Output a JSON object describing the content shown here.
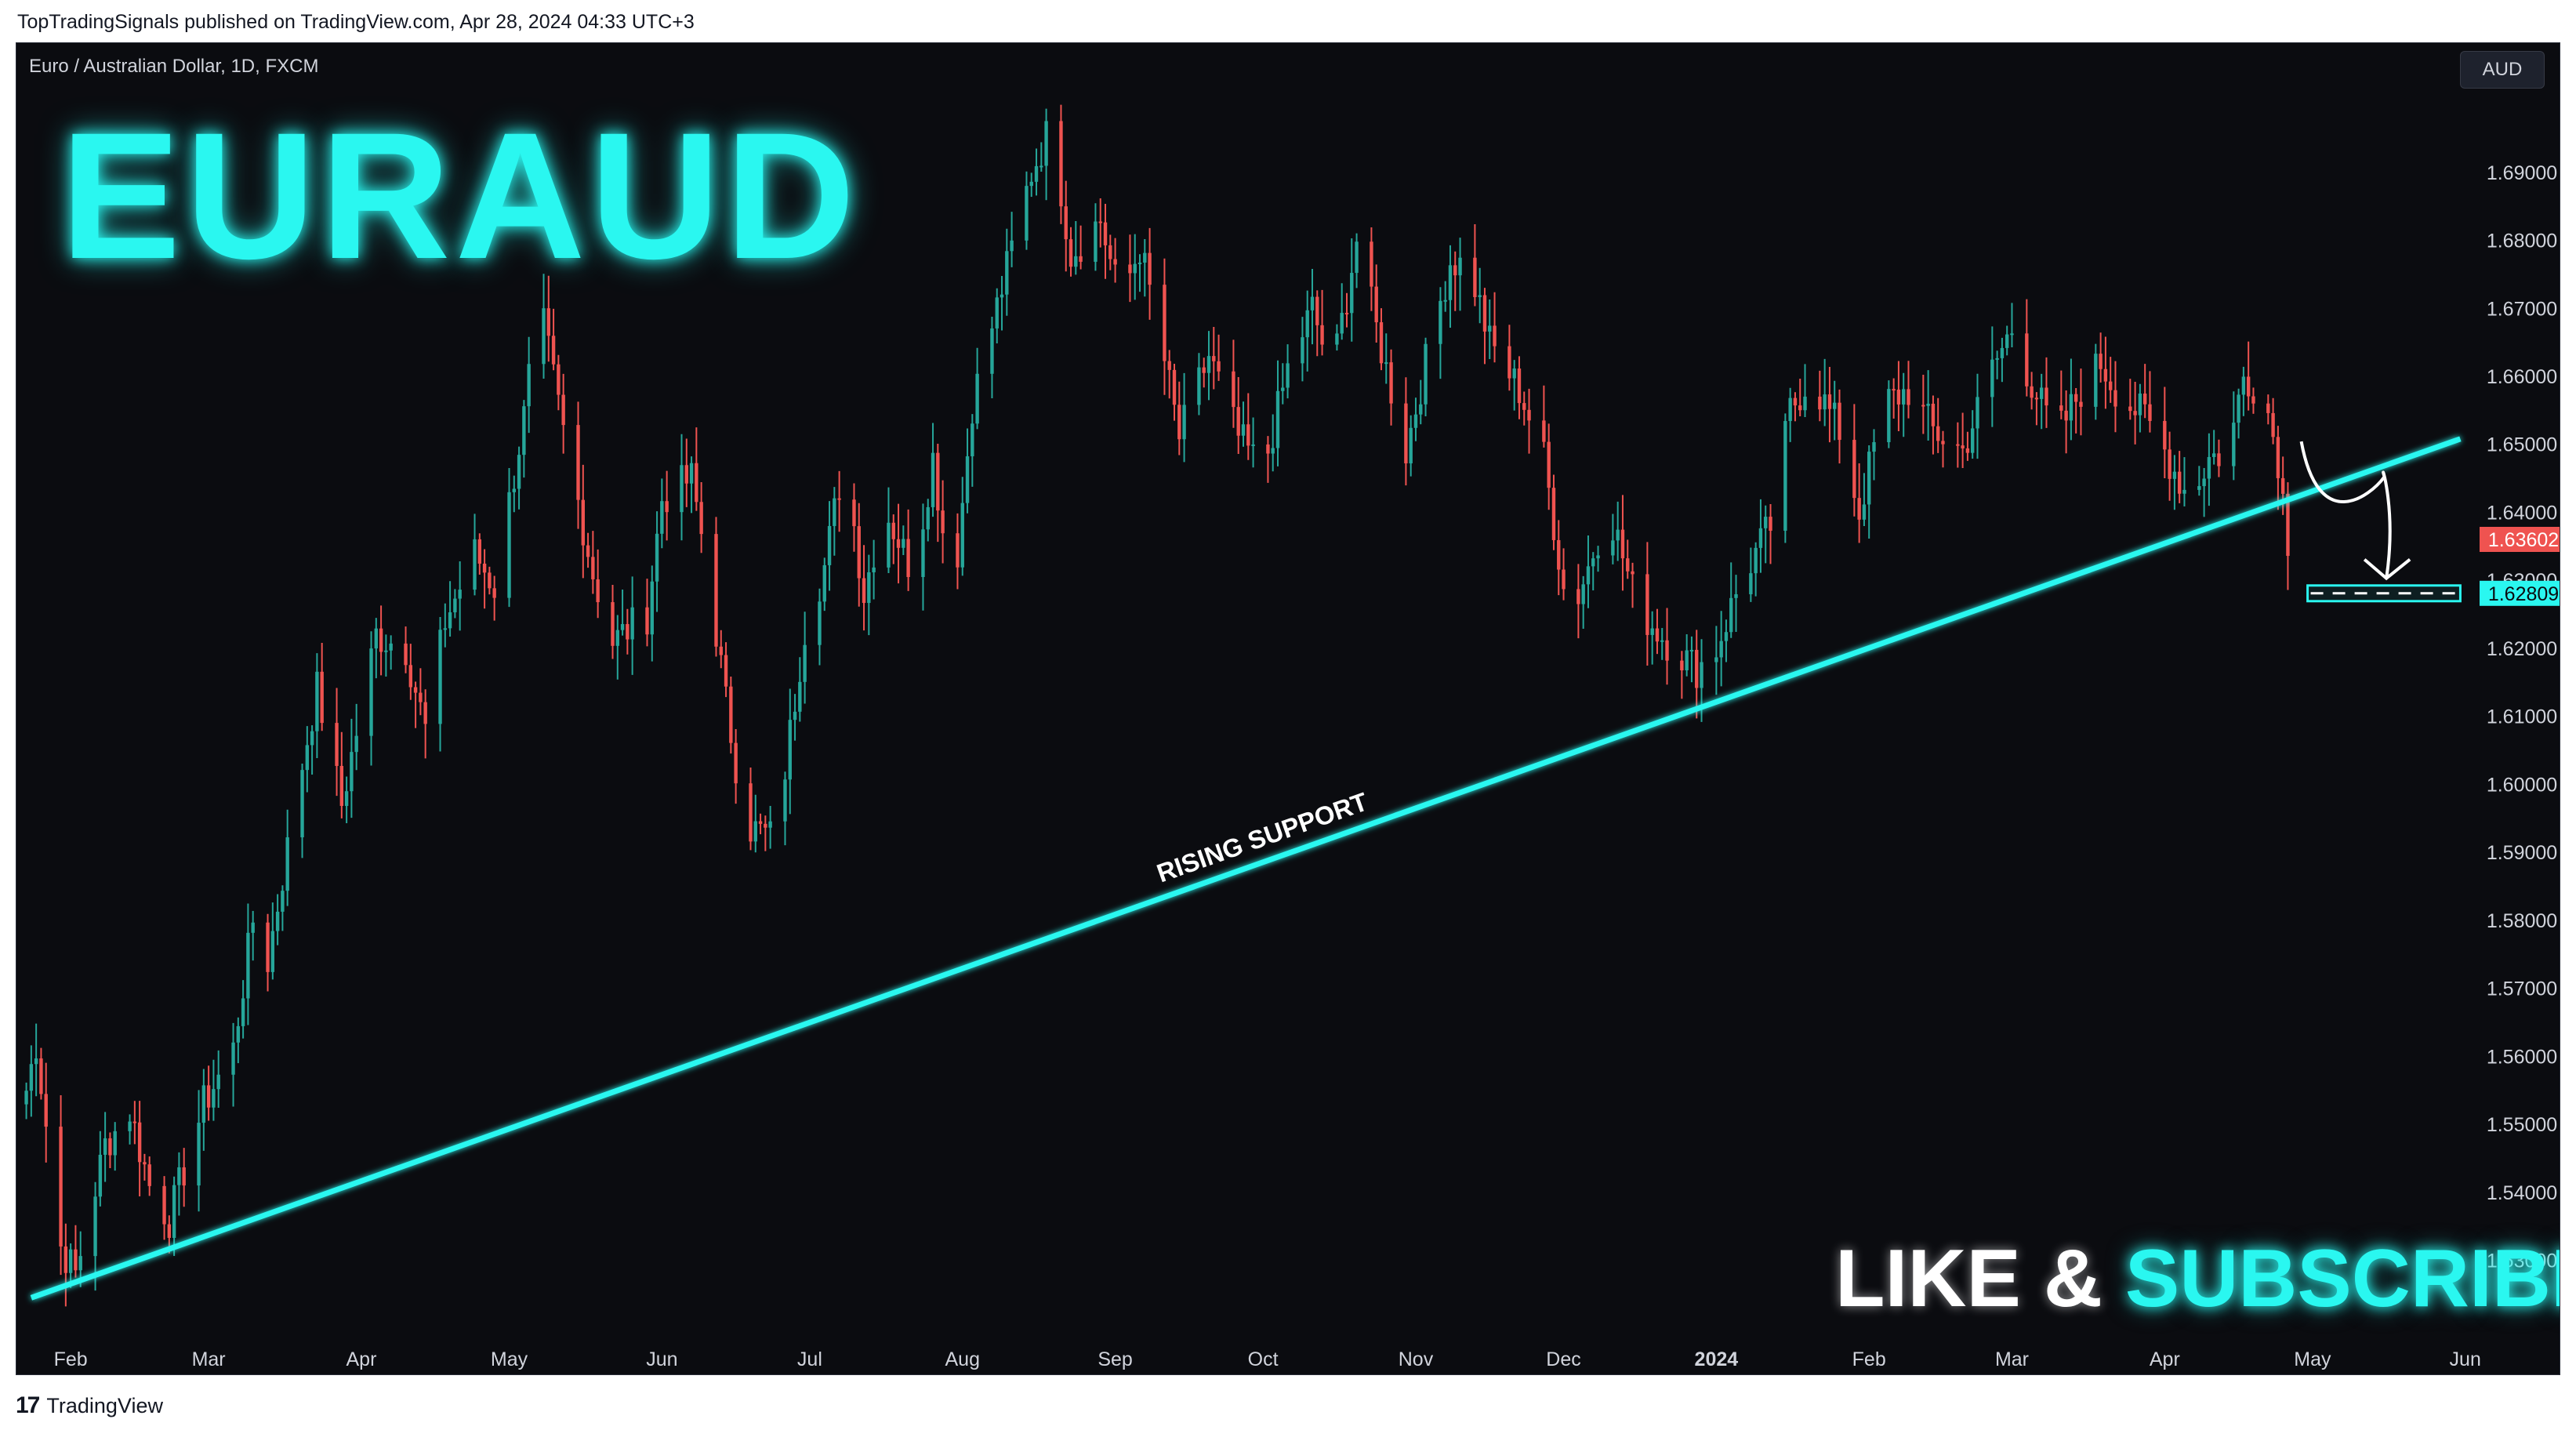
{
  "header": {
    "publisher_line": "TopTradingSignals published on TradingView.com, Apr 28, 2024 04:33 UTC+3"
  },
  "chart_header": {
    "symbol_line": "Euro / Australian Dollar, 1D, FXCM",
    "big_title": "EURAUD",
    "currency": "AUD"
  },
  "call_to_action": {
    "like": "LIKE",
    "amp": "&",
    "subscribe": "SUBSCRIBE"
  },
  "footer": {
    "logo_glyph": "17",
    "brand": "TradingView"
  },
  "colors": {
    "up": "#26a69a",
    "down": "#ef5350",
    "accent": "#2af7f0",
    "background": "#0b0c10"
  },
  "chart_data": {
    "type": "candlestick",
    "symbol": "Euro / Australian Dollar",
    "interval": "1D",
    "source": "FXCM",
    "ylim": [
      1.519,
      1.709
    ],
    "xlim": [
      "2023-01-21",
      "2024-06-02"
    ],
    "y_ticks": [
      "1.53000",
      "1.54000",
      "1.55000",
      "1.56000",
      "1.57000",
      "1.58000",
      "1.59000",
      "1.60000",
      "1.61000",
      "1.62000",
      "1.63000",
      "1.64000",
      "1.65000",
      "1.66000",
      "1.67000",
      "1.68000",
      "1.69000"
    ],
    "x_ticks": [
      {
        "label": "Feb",
        "date": "2023-02-01"
      },
      {
        "label": "Mar",
        "date": "2023-03-01"
      },
      {
        "label": "Apr",
        "date": "2023-04-01"
      },
      {
        "label": "May",
        "date": "2023-05-01"
      },
      {
        "label": "Jun",
        "date": "2023-06-01"
      },
      {
        "label": "Jul",
        "date": "2023-07-01"
      },
      {
        "label": "Aug",
        "date": "2023-08-01"
      },
      {
        "label": "Sep",
        "date": "2023-09-01"
      },
      {
        "label": "Oct",
        "date": "2023-10-01"
      },
      {
        "label": "Nov",
        "date": "2023-11-01"
      },
      {
        "label": "Dec",
        "date": "2023-12-01"
      },
      {
        "label": "2024",
        "date": "2024-01-01",
        "bold": true
      },
      {
        "label": "Feb",
        "date": "2024-02-01"
      },
      {
        "label": "Mar",
        "date": "2024-03-01"
      },
      {
        "label": "Apr",
        "date": "2024-04-01"
      },
      {
        "label": "May",
        "date": "2024-05-01"
      },
      {
        "label": "Jun",
        "date": "2024-06-01"
      }
    ],
    "close_path": [
      [
        "2023-01-21",
        1.548
      ],
      [
        "2023-01-25",
        1.562
      ],
      [
        "2023-01-30",
        1.532
      ],
      [
        "2023-02-02",
        1.528
      ],
      [
        "2023-02-08",
        1.547
      ],
      [
        "2023-02-13",
        1.552
      ],
      [
        "2023-02-17",
        1.541
      ],
      [
        "2023-02-21",
        1.536
      ],
      [
        "2023-02-28",
        1.553
      ],
      [
        "2023-03-06",
        1.561
      ],
      [
        "2023-03-10",
        1.58
      ],
      [
        "2023-03-13",
        1.574
      ],
      [
        "2023-03-20",
        1.603
      ],
      [
        "2023-03-23",
        1.614
      ],
      [
        "2023-03-28",
        1.597
      ],
      [
        "2023-04-04",
        1.622
      ],
      [
        "2023-04-10",
        1.62
      ],
      [
        "2023-04-14",
        1.608
      ],
      [
        "2023-04-18",
        1.624
      ],
      [
        "2023-04-24",
        1.634
      ],
      [
        "2023-04-28",
        1.629
      ],
      [
        "2023-05-04",
        1.654
      ],
      [
        "2023-05-07",
        1.671
      ],
      [
        "2023-05-12",
        1.652
      ],
      [
        "2023-05-18",
        1.631
      ],
      [
        "2023-05-22",
        1.621
      ],
      [
        "2023-05-29",
        1.625
      ],
      [
        "2023-06-01",
        1.642
      ],
      [
        "2023-06-07",
        1.645
      ],
      [
        "2023-06-10",
        1.633
      ],
      [
        "2023-06-14",
        1.612
      ],
      [
        "2023-06-18",
        1.594
      ],
      [
        "2023-06-24",
        1.592
      ],
      [
        "2023-06-30",
        1.623
      ],
      [
        "2023-07-04",
        1.632
      ],
      [
        "2023-07-08",
        1.648
      ],
      [
        "2023-07-12",
        1.628
      ],
      [
        "2023-07-16",
        1.641
      ],
      [
        "2023-07-22",
        1.631
      ],
      [
        "2023-07-26",
        1.648
      ],
      [
        "2023-07-30",
        1.627
      ],
      [
        "2023-08-03",
        1.656
      ],
      [
        "2023-08-09",
        1.673
      ],
      [
        "2023-08-15",
        1.69
      ],
      [
        "2023-08-19",
        1.697
      ],
      [
        "2023-08-23",
        1.678
      ],
      [
        "2023-08-29",
        1.683
      ],
      [
        "2023-09-02",
        1.671
      ],
      [
        "2023-09-06",
        1.679
      ],
      [
        "2023-09-10",
        1.666
      ],
      [
        "2023-09-14",
        1.651
      ],
      [
        "2023-09-20",
        1.663
      ],
      [
        "2023-09-26",
        1.651
      ],
      [
        "2023-10-01",
        1.646
      ],
      [
        "2023-10-06",
        1.661
      ],
      [
        "2023-10-11",
        1.67
      ],
      [
        "2023-10-15",
        1.66
      ],
      [
        "2023-10-20",
        1.68
      ],
      [
        "2023-10-24",
        1.667
      ],
      [
        "2023-10-30",
        1.649
      ],
      [
        "2023-11-03",
        1.662
      ],
      [
        "2023-11-08",
        1.677
      ],
      [
        "2023-11-12",
        1.676
      ],
      [
        "2023-11-16",
        1.665
      ],
      [
        "2023-11-22",
        1.658
      ],
      [
        "2023-11-27",
        1.648
      ],
      [
        "2023-12-02",
        1.624
      ],
      [
        "2023-12-06",
        1.632
      ],
      [
        "2023-12-10",
        1.641
      ],
      [
        "2023-12-16",
        1.626
      ],
      [
        "2023-12-22",
        1.621
      ],
      [
        "2023-12-28",
        1.617
      ],
      [
        "2024-01-01",
        1.62
      ],
      [
        "2024-01-06",
        1.63
      ],
      [
        "2024-01-12",
        1.638
      ],
      [
        "2024-01-16",
        1.655
      ],
      [
        "2024-01-20",
        1.66
      ],
      [
        "2024-01-26",
        1.652
      ],
      [
        "2024-01-30",
        1.64
      ],
      [
        "2024-02-04",
        1.656
      ],
      [
        "2024-02-09",
        1.658
      ],
      [
        "2024-02-14",
        1.652
      ],
      [
        "2024-02-20",
        1.649
      ],
      [
        "2024-02-26",
        1.661
      ],
      [
        "2024-03-01",
        1.667
      ],
      [
        "2024-03-05",
        1.659
      ],
      [
        "2024-03-10",
        1.651
      ],
      [
        "2024-03-15",
        1.658
      ],
      [
        "2024-03-19",
        1.662
      ],
      [
        "2024-03-23",
        1.657
      ],
      [
        "2024-03-28",
        1.654
      ],
      [
        "2024-04-01",
        1.649
      ],
      [
        "2024-04-06",
        1.642
      ],
      [
        "2024-04-10",
        1.648
      ],
      [
        "2024-04-14",
        1.649
      ],
      [
        "2024-04-17",
        1.66
      ],
      [
        "2024-04-21",
        1.658
      ],
      [
        "2024-04-24",
        1.648
      ],
      [
        "2024-04-26",
        1.636
      ]
    ],
    "last_price": "1.63602",
    "target_price": "1.62809",
    "target_value": 1.62809,
    "trendline": {
      "label": "RISING SUPPORT",
      "start": [
        "2023-01-24",
        1.5245
      ],
      "end": [
        "2024-05-31",
        1.6508
      ]
    },
    "projection_arrow": {
      "start": [
        "2024-04-30",
        1.6435
      ],
      "end": [
        "2024-05-16",
        1.6303
      ]
    },
    "target_box": {
      "from": "2024-04-30",
      "to": "2024-05-31",
      "price": 1.62809
    },
    "grid": false,
    "legend": "none"
  }
}
